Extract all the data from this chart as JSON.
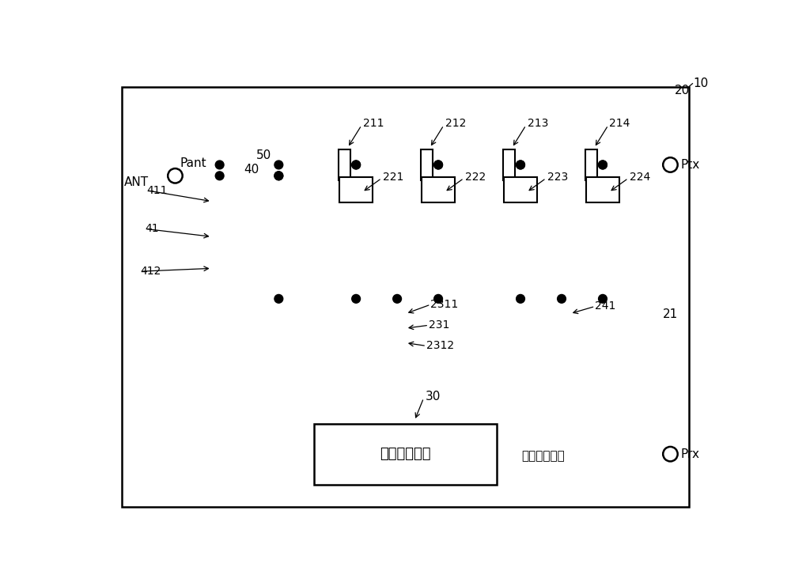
{
  "bg_color": "#ffffff",
  "label_10": "10",
  "label_20": "20",
  "label_30": "30",
  "label_40": "40",
  "label_50": "50",
  "label_21": "21",
  "label_41": "41",
  "label_411": "411",
  "label_412": "412",
  "label_ANT": "ANT",
  "label_Pant": "Pant",
  "label_Ptx": "Ptx",
  "label_Prx": "Prx",
  "label_filter_tx": "发送侧滤波器",
  "label_filter_rx": "接收侧滤波器",
  "label_211": "211",
  "label_212": "212",
  "label_213": "213",
  "label_214": "214",
  "label_221": "221",
  "label_222": "222",
  "label_223": "223",
  "label_224": "224",
  "label_231": "231",
  "label_2311": "2311",
  "label_2312": "2312",
  "label_241": "241",
  "fontsize_large": 12,
  "fontsize_med": 11,
  "fontsize_small": 10
}
